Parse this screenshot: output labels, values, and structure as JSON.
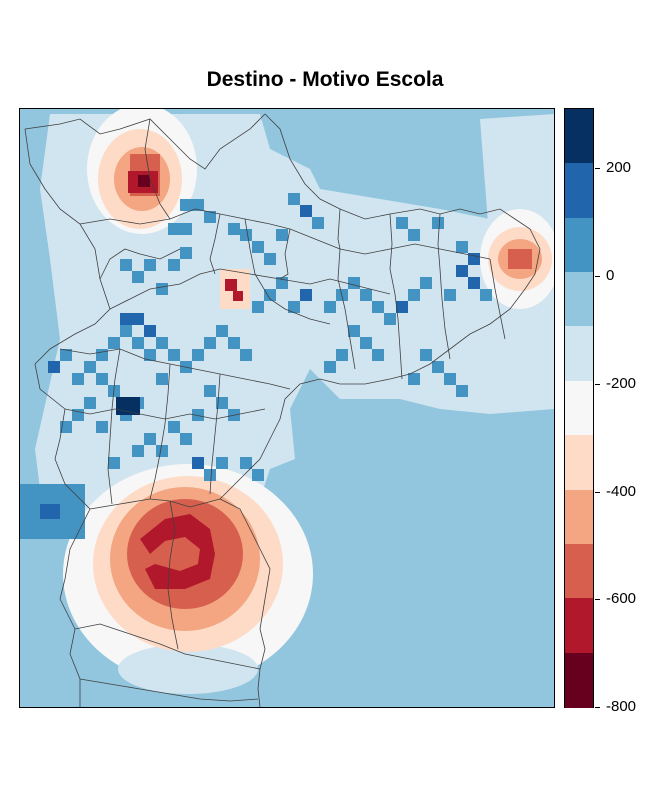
{
  "title": "Destino - Motivo Escola",
  "legend": {
    "colors": [
      "#67001f",
      "#b2182b",
      "#d6604d",
      "#f4a582",
      "#fddbc7",
      "#f7f7f7",
      "#d1e5f0",
      "#92c5de",
      "#4393c3",
      "#2166ac",
      "#053061"
    ],
    "min": -800,
    "max": 310,
    "ticks": [
      "200",
      "0",
      "-200",
      "-400",
      "-600",
      "-800"
    ]
  },
  "map": {
    "background_class": "#92c5de",
    "note": ""
  }
}
